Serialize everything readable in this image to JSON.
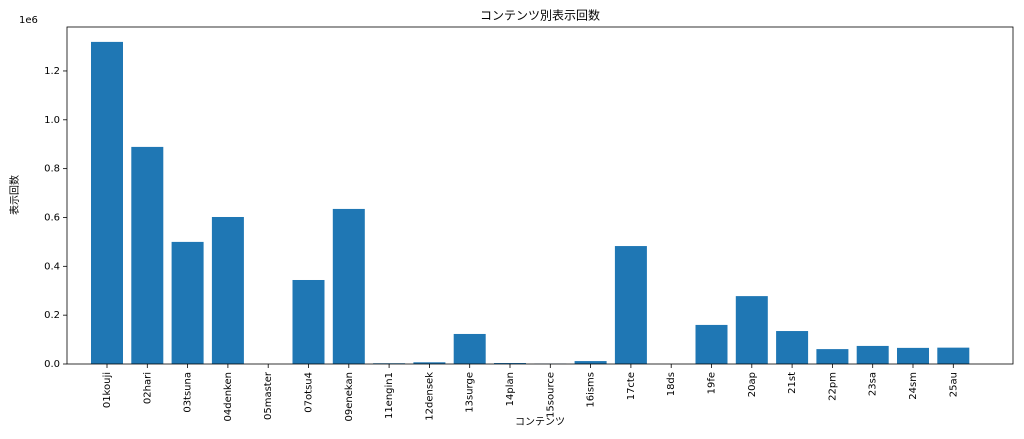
{
  "chart_data": {
    "type": "bar",
    "title": "コンテンツ別表示回数",
    "xlabel": "コンテンツ",
    "ylabel": "表示回数",
    "y_offset_label": "1e6",
    "color": "#1f77b4",
    "categories": [
      "01kouji",
      "02hari",
      "03tsuna",
      "04denken",
      "05master",
      "07otsu4",
      "09enekan",
      "11engin1",
      "12densek",
      "13surge",
      "14plan",
      "15source",
      "16isms",
      "17cte",
      "18ds",
      "19fe",
      "20ap",
      "21st",
      "22pm",
      "23sa",
      "24sm",
      "25au"
    ],
    "values": [
      1.319,
      0.889,
      0.5,
      0.602,
      0,
      0.344,
      0.635,
      0.003,
      0.007,
      0.123,
      0.004,
      0.001,
      0.012,
      0.483,
      0,
      0.16,
      0.278,
      0.135,
      0.061,
      0.074,
      0.066,
      0.067
    ],
    "ylim": [
      0,
      1.38
    ],
    "yticks": [
      {
        "value": 0,
        "label": "0.0"
      },
      0.2,
      0.4,
      0.6,
      0.8,
      {
        "value": 1,
        "label": "1.0"
      },
      1.2
    ],
    "grid": false
  }
}
